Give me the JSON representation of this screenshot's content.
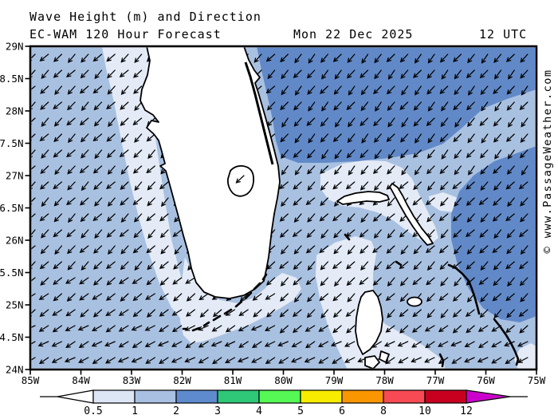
{
  "header": {
    "title": "Wave Height (m) and Direction",
    "model_line": "EC-WAM 120 Hour Forecast",
    "date": "Mon 22 Dec 2025",
    "time": "12 UTC"
  },
  "watermark": "© www.PassageWeather.com",
  "axes": {
    "lat_labels": [
      "29N",
      "28.5N",
      "28N",
      "27.5N",
      "27N",
      "26.5N",
      "26N",
      "25.5N",
      "25N",
      "24.5N",
      "24N"
    ],
    "lon_labels": [
      "85W",
      "84W",
      "83W",
      "82W",
      "81W",
      "80W",
      "79W",
      "78W",
      "77W",
      "76W",
      "75W"
    ]
  },
  "colorbar": {
    "tick_labels": [
      "0.5",
      "1",
      "2",
      "3",
      "4",
      "5",
      "6",
      "8",
      "10",
      "12"
    ],
    "cell_colors": [
      "#dce6f5",
      "#a9c0e2",
      "#5e8bce",
      "#2ec878",
      "#55f855",
      "#f8ec00",
      "#fa9600",
      "#f84a55",
      "#c80020"
    ],
    "underflow_color": "#ffffff",
    "overflow_color": "#cc00cc"
  },
  "map_data": {
    "type": "vector-field-map",
    "region": "Florida, Gulf of Mexico and Bahamas",
    "lon_range_deg_w": [
      85,
      75
    ],
    "lat_range_deg_n": [
      24,
      29
    ],
    "wave_direction": "toward southwest",
    "wave_height_m": {
      "gulf_of_mexico": "1-2",
      "west_florida_coastal_band": "0.5-1",
      "atlantic_northeast": "2-3",
      "atlantic_central": "1-2",
      "little_bahama_bank": "0.5-1",
      "great_bahama_bank": "0.5-1",
      "atlantic_east_76w_75w": "2-3"
    },
    "sea_colors": {
      "0.5-1m": "#e4ebf6",
      "1-2m": "#a9c1e1",
      "2-3m": "#6189c8"
    },
    "land_color": "#ffffff"
  }
}
